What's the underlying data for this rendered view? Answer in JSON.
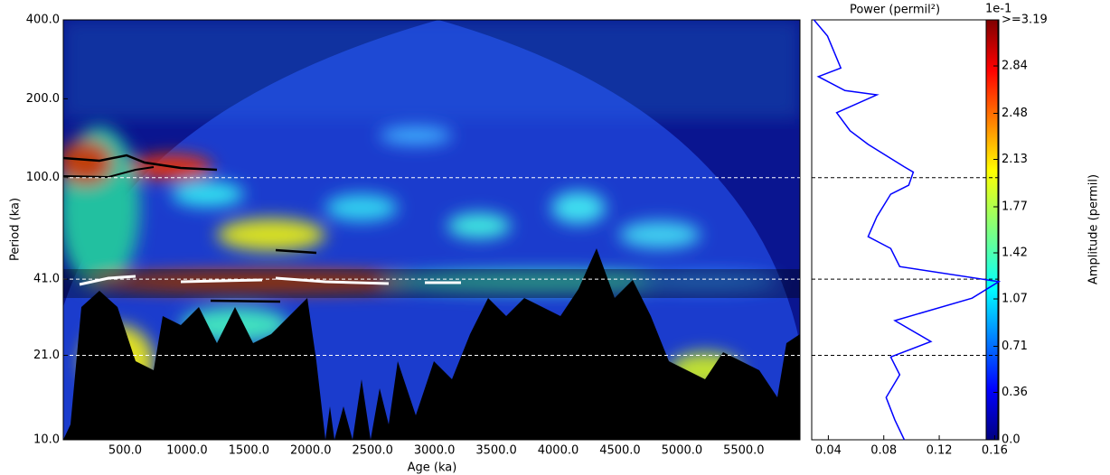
{
  "chart_data": [
    {
      "type": "heatmap",
      "xlabel": "Age (ka)",
      "ylabel": "Period (ka)",
      "xlim": [
        0,
        5954
      ],
      "xticks": [
        {
          "value": 500,
          "label": "500.0"
        },
        {
          "value": 1000,
          "label": "1000.0"
        },
        {
          "value": 1500,
          "label": "1500.0"
        },
        {
          "value": 2000,
          "label": "2000.0"
        },
        {
          "value": 2500,
          "label": "2500.0"
        },
        {
          "value": 3000,
          "label": "3000.0"
        },
        {
          "value": 3500,
          "label": "3500.0"
        },
        {
          "value": 4000,
          "label": "4000.0"
        },
        {
          "value": 4500,
          "label": "4500.0"
        },
        {
          "value": 5000,
          "label": "5000.0"
        },
        {
          "value": 5500,
          "label": "5500.0"
        }
      ],
      "ylim": [
        10,
        400
      ],
      "log_y": true,
      "yticks": [
        {
          "value": 10,
          "label": "10.0"
        },
        {
          "value": 21,
          "label": "21.0"
        },
        {
          "value": 41,
          "label": "41.0"
        },
        {
          "value": 100,
          "label": "100.0"
        },
        {
          "value": 200,
          "label": "200.0"
        },
        {
          "value": 400,
          "label": "400.0"
        }
      ],
      "hlines": [
        21,
        41,
        100
      ],
      "hline_color": "#ffffff"
    },
    {
      "type": "line",
      "title": "Power (permil²)",
      "xlim": [
        0.028,
        0.163
      ],
      "xticks": [
        0.04,
        0.08,
        0.12,
        0.16
      ],
      "ylim": [
        10,
        400
      ],
      "log_y": true,
      "hlines": [
        21,
        41,
        100
      ],
      "hline_color": "#000000",
      "series": [
        {
          "color": "#0000ff",
          "y": [
            400,
            347,
            262,
            243,
            215,
            207,
            177,
            151,
            134,
            110,
            105,
            93.6,
            86.5,
            71,
            59.6,
            53.7,
            45.8,
            40.1,
            34.7,
            28.5,
            23.7,
            20.7,
            17.7,
            14.5,
            11.9,
            10
          ],
          "values": [
            0.0296,
            0.0394,
            0.049,
            0.0328,
            0.052,
            0.075,
            0.046,
            0.0557,
            0.0687,
            0.0948,
            0.1013,
            0.098,
            0.085,
            0.075,
            0.0687,
            0.085,
            0.0915,
            0.163,
            0.1437,
            0.088,
            0.114,
            0.085,
            0.0915,
            0.0817,
            0.088,
            0.0948
          ]
        }
      ]
    },
    {
      "type": "colorbar",
      "label": "Amplitude (permil)",
      "offset_label": "1e-1",
      "lim": [
        0,
        3.19
      ],
      "ticks": [
        {
          "value": 0,
          "label": "0.0"
        },
        0.36,
        0.71,
        1.07,
        1.42,
        1.77,
        2.13,
        2.48,
        2.84,
        {
          "value": 3.19,
          "label": ">=3.19"
        }
      ]
    }
  ]
}
